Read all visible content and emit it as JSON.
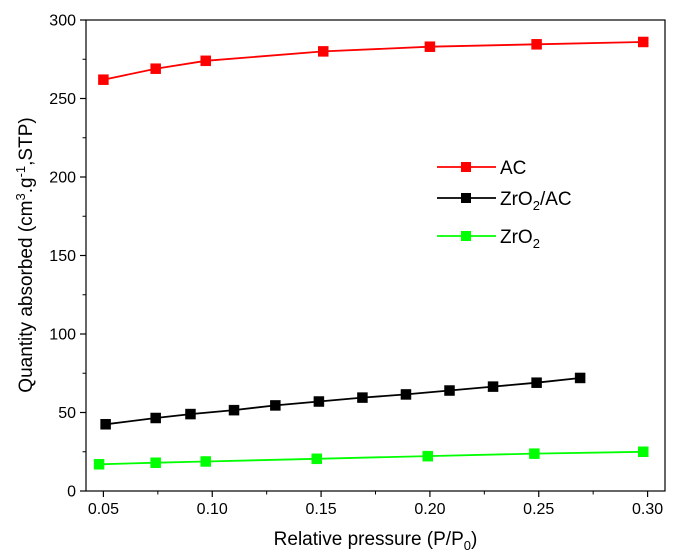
{
  "chart_data": {
    "type": "line",
    "title": "",
    "xlabel": "Relative pressure (P/P",
    "xlabel_sub": "0",
    "xlabel_suffix": ")",
    "ylabel": "Quantity absorbed (cm",
    "ylabel_sup1": "3",
    "ylabel_mid": ".g",
    "ylabel_sup2": "-1",
    "ylabel_suffix": ",STP)",
    "xlim": [
      0.042,
      0.308
    ],
    "ylim": [
      0,
      300
    ],
    "xticks": [
      "0.05",
      "0.10",
      "0.15",
      "0.20",
      "0.25",
      "0.30"
    ],
    "yticks": [
      "0",
      "50",
      "100",
      "150",
      "200",
      "250",
      "300"
    ],
    "grid": false,
    "legend_position": "center-right",
    "series": [
      {
        "name": "AC",
        "name_base": "AC",
        "color": "#ff0000",
        "x": [
          0.05,
          0.074,
          0.097,
          0.151,
          0.2,
          0.249,
          0.298
        ],
        "y": [
          262,
          269,
          274,
          280,
          283,
          284.5,
          286
        ]
      },
      {
        "name": "ZrO2/AC",
        "name_base": "ZrO",
        "name_sub": "2",
        "name_suffix": "/AC",
        "color": "#000000",
        "x": [
          0.051,
          0.074,
          0.09,
          0.11,
          0.129,
          0.149,
          0.169,
          0.189,
          0.209,
          0.229,
          0.249,
          0.269
        ],
        "y": [
          42.5,
          46.5,
          49,
          51.5,
          54.5,
          57,
          59.5,
          61.5,
          64,
          66.5,
          69,
          72
        ]
      },
      {
        "name": "ZrO2",
        "name_base": "ZrO",
        "name_sub": "2",
        "name_suffix": "",
        "color": "#00ff00",
        "x": [
          0.048,
          0.074,
          0.097,
          0.148,
          0.199,
          0.248,
          0.298
        ],
        "y": [
          17,
          18,
          18.8,
          20.5,
          22.2,
          23.8,
          25
        ]
      }
    ]
  }
}
